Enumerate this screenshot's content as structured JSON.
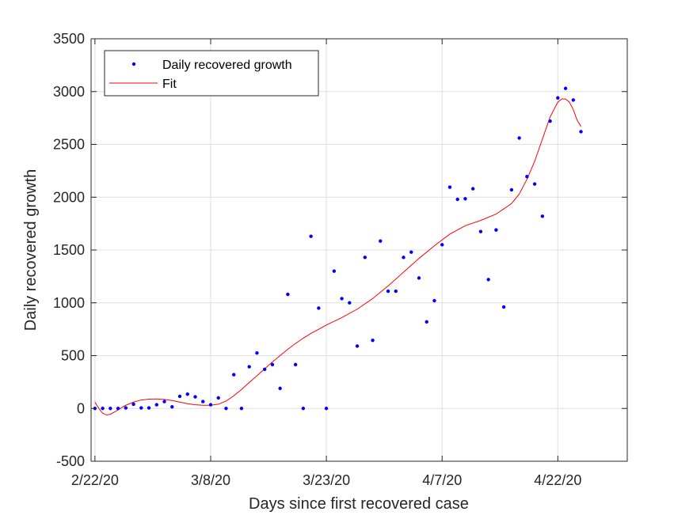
{
  "chart_data": {
    "type": "scatter",
    "title": "",
    "xlabel": "Days since first recovered case",
    "ylabel": "Daily recovered growth",
    "xlim": [
      -0.5,
      69
    ],
    "ylim": [
      -500,
      3500
    ],
    "x_ticks": [
      {
        "value": 0,
        "label": "2/22/20"
      },
      {
        "value": 15,
        "label": "3/8/20"
      },
      {
        "value": 30,
        "label": "3/23/20"
      },
      {
        "value": 45,
        "label": "4/7/20"
      },
      {
        "value": 60,
        "label": "4/22/20"
      }
    ],
    "y_ticks": [
      {
        "value": -500,
        "label": "-500"
      },
      {
        "value": 0,
        "label": "0"
      },
      {
        "value": 500,
        "label": "500"
      },
      {
        "value": 1000,
        "label": "1000"
      },
      {
        "value": 1500,
        "label": "1500"
      },
      {
        "value": 2000,
        "label": "2000"
      },
      {
        "value": 2500,
        "label": "2500"
      },
      {
        "value": 3000,
        "label": "3000"
      },
      {
        "value": 3500,
        "label": "3500"
      }
    ],
    "grid": true,
    "legend": {
      "placement": "top-left",
      "entries": [
        "Daily recovered growth",
        "Fit"
      ]
    },
    "series": [
      {
        "name": "Daily recovered growth",
        "kind": "scatter",
        "color": "#0000ff",
        "x": [
          0,
          1,
          2,
          3,
          4,
          5,
          6,
          7,
          8,
          9,
          10,
          11,
          12,
          13,
          14,
          15,
          16,
          17,
          18,
          19,
          20,
          21,
          22,
          23,
          24,
          25,
          26,
          27,
          28,
          29,
          30,
          31,
          32,
          33,
          34,
          35,
          36,
          37,
          38,
          39,
          40,
          41,
          42,
          43,
          44,
          45,
          46,
          47,
          48,
          49,
          50,
          51,
          52,
          53,
          54,
          55,
          56,
          57,
          58,
          59,
          60,
          61,
          62,
          63
        ],
        "y": [
          0,
          0,
          0,
          0,
          5,
          40,
          5,
          5,
          35,
          65,
          15,
          115,
          135,
          110,
          65,
          35,
          100,
          0,
          320,
          0,
          395,
          525,
          370,
          415,
          190,
          1080,
          415,
          0,
          1630,
          950,
          0,
          1300,
          1040,
          1000,
          590,
          1430,
          645,
          1585,
          1110,
          1110,
          1430,
          1480,
          1235,
          820,
          1020,
          1550,
          2095,
          1980,
          1985,
          2080,
          1675,
          1220,
          1690,
          960,
          2070,
          2560,
          2195,
          2125,
          1820,
          2720,
          2940,
          3030,
          2920,
          2620
        ]
      },
      {
        "name": "Fit",
        "kind": "line",
        "color": "#ff0000",
        "x": [
          0,
          0.5,
          1,
          1.5,
          2,
          2.5,
          3,
          3.5,
          4,
          5,
          6,
          7,
          8,
          9,
          10,
          11,
          12,
          13,
          14,
          15,
          16,
          17,
          18,
          19,
          20,
          21,
          22,
          23,
          24,
          25,
          26,
          27,
          28,
          29,
          30,
          32,
          34,
          36,
          38,
          40,
          42,
          44,
          46,
          48,
          50,
          52,
          54,
          55,
          56,
          57,
          58,
          59,
          60,
          60.5,
          61,
          61.5,
          62,
          62.5,
          63
        ],
        "y": [
          60,
          0,
          -45,
          -62,
          -55,
          -35,
          -15,
          10,
          30,
          60,
          80,
          88,
          90,
          85,
          75,
          60,
          45,
          35,
          30,
          30,
          40,
          70,
          120,
          180,
          245,
          310,
          375,
          440,
          500,
          560,
          615,
          665,
          710,
          750,
          790,
          860,
          940,
          1040,
          1160,
          1290,
          1420,
          1540,
          1650,
          1730,
          1780,
          1840,
          1940,
          2030,
          2170,
          2340,
          2550,
          2760,
          2900,
          2930,
          2930,
          2900,
          2830,
          2730,
          2670
        ]
      }
    ]
  }
}
